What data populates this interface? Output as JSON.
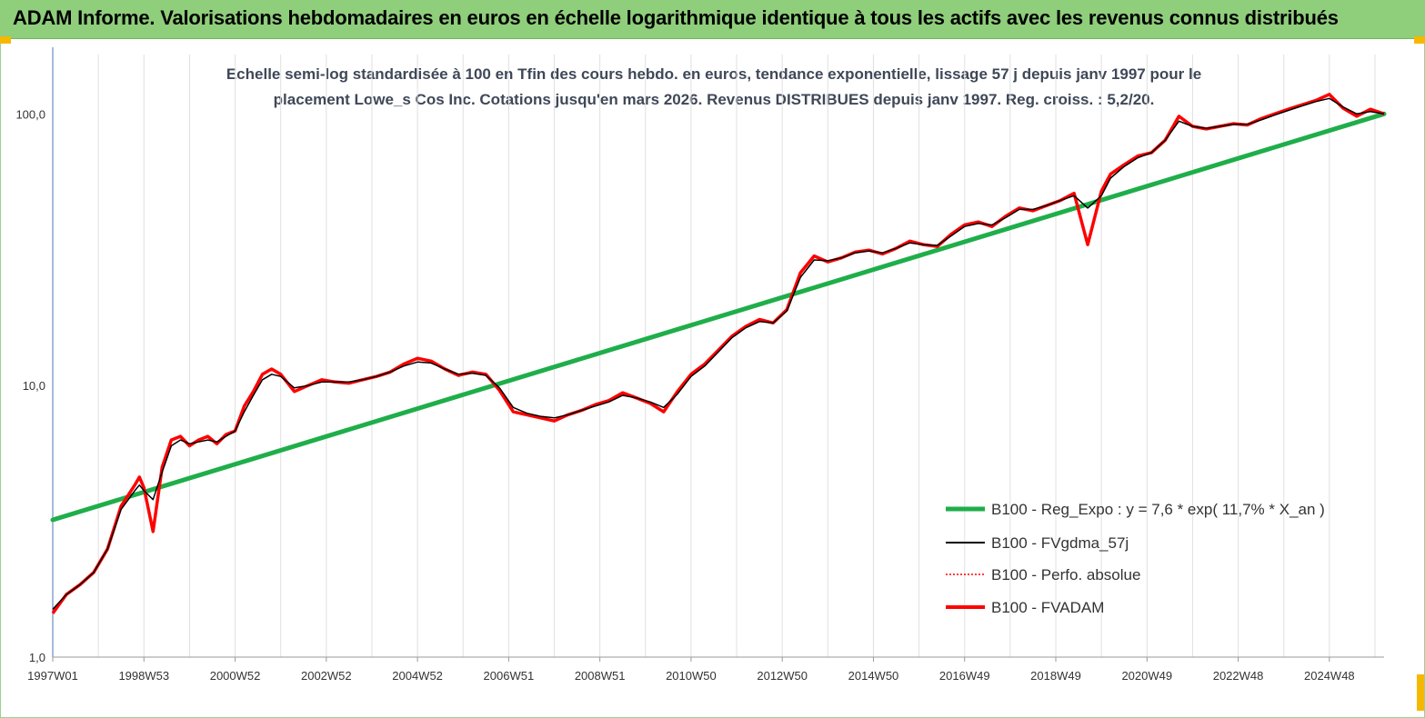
{
  "header": {
    "title": "ADAM Informe. Valorisations hebdomadaires en euros en échelle logarithmique identique à tous les actifs avec les revenus connus distribués"
  },
  "colors": {
    "header_bg": "#8fce7b",
    "regression": "#1fae4a",
    "smoothed": "#000000",
    "perfo": "#ff0000",
    "fvadam": "#ff0000",
    "grid": "#e0e0e0"
  },
  "chart_data": {
    "type": "line",
    "title": "Echelle semi-log standardisée à 100 en Tfin des cours hebdo. en euros, tendance exponentielle, lissage 57 j depuis janv 1997 pour le placement Lowe_s Cos Inc. Cotations jusqu'en mars 2026. Revenus DISTRIBUES depuis janv 1997. Reg. croiss. : 5,2/20.",
    "title_lines": [
      "Echelle semi-log standardisée à 100 en Tfin des cours hebdo. en euros, tendance exponentielle, lissage 57 j depuis janv 1997 pour le",
      "placement Lowe_s Cos Inc. Cotations jusqu'en mars 2026.  Revenus DISTRIBUES depuis janv 1997.  Reg. croiss. : 5,2/20."
    ],
    "y_scale": "log",
    "ylim": [
      1,
      190
    ],
    "y_ticks": [
      1,
      10,
      100
    ],
    "y_tick_labels": [
      "1,0",
      "10,0",
      "100,0"
    ],
    "xlim": [
      1997.0,
      2026.2
    ],
    "x_tick_labels": [
      "1997W01",
      "1998W53",
      "2000W52",
      "2002W52",
      "2004W52",
      "2006W51",
      "2008W51",
      "2010W50",
      "2012W50",
      "2014W50",
      "2016W49",
      "2018W49",
      "2020W49",
      "2022W48",
      "2024W48"
    ],
    "x_tick_positions": [
      1997,
      1999,
      2001,
      2003,
      2005,
      2007,
      2009,
      2011,
      2013,
      2015,
      2017,
      2019,
      2021,
      2023,
      2025
    ],
    "grid": "vertical",
    "legend_position": "right",
    "legend": [
      "B100 - Reg_Expo : y = 7,6 * exp( 11,7% *  X_an )",
      "B100 - FVgdma_57j",
      "B100 - Perfo. absolue",
      "B100 - FVADAM"
    ],
    "series": [
      {
        "name": "B100 - Reg_Expo : y = 7,6 * exp( 11,7% *  X_an )",
        "style": "thick-green",
        "x": [
          1997.0,
          2026.2
        ],
        "y": [
          3.2,
          100
        ]
      },
      {
        "name": "B100 - FVADAM",
        "style": "red",
        "x": [
          1997.0,
          1997.3,
          1997.6,
          1997.9,
          1998.2,
          1998.5,
          1998.8,
          1998.9,
          1999.0,
          1999.2,
          1999.4,
          1999.6,
          1999.8,
          2000.0,
          2000.2,
          2000.4,
          2000.6,
          2000.8,
          2001.0,
          2001.2,
          2001.4,
          2001.6,
          2001.8,
          2002.0,
          2002.3,
          2002.6,
          2002.9,
          2003.2,
          2003.5,
          2003.8,
          2004.1,
          2004.4,
          2004.7,
          2005.0,
          2005.3,
          2005.6,
          2005.9,
          2006.2,
          2006.5,
          2006.8,
          2007.1,
          2007.4,
          2007.7,
          2008.0,
          2008.3,
          2008.6,
          2008.9,
          2009.2,
          2009.5,
          2009.8,
          2010.1,
          2010.4,
          2010.7,
          2011.0,
          2011.3,
          2011.6,
          2011.9,
          2012.2,
          2012.5,
          2012.8,
          2013.1,
          2013.4,
          2013.7,
          2014.0,
          2014.3,
          2014.6,
          2014.9,
          2015.2,
          2015.5,
          2015.8,
          2016.1,
          2016.4,
          2016.7,
          2017.0,
          2017.3,
          2017.6,
          2017.9,
          2018.2,
          2018.5,
          2018.8,
          2019.1,
          2019.4,
          2019.7,
          2020.0,
          2020.2,
          2020.5,
          2020.8,
          2021.1,
          2021.4,
          2021.7,
          2022.0,
          2022.3,
          2022.6,
          2022.9,
          2023.2,
          2023.5,
          2023.8,
          2024.1,
          2024.4,
          2024.7,
          2025.0,
          2025.3,
          2025.6,
          2025.9,
          2026.2
        ],
        "y": [
          1.45,
          1.7,
          1.85,
          2.05,
          2.5,
          3.6,
          4.3,
          4.6,
          4.2,
          2.9,
          5.0,
          6.3,
          6.5,
          6.0,
          6.3,
          6.5,
          6.1,
          6.6,
          6.8,
          8.4,
          9.5,
          11.0,
          11.5,
          11.0,
          9.5,
          10.0,
          10.5,
          10.3,
          10.2,
          10.5,
          10.8,
          11.2,
          12.0,
          12.6,
          12.3,
          11.5,
          10.9,
          11.2,
          11.0,
          9.6,
          8.0,
          7.8,
          7.6,
          7.4,
          7.8,
          8.1,
          8.5,
          8.8,
          9.4,
          9.0,
          8.6,
          8.0,
          9.5,
          11.0,
          12.0,
          13.5,
          15.2,
          16.5,
          17.5,
          17.0,
          19.0,
          26.0,
          30.0,
          28.5,
          29.5,
          31.0,
          31.5,
          30.5,
          32.0,
          34.0,
          33.0,
          32.5,
          36.0,
          39.0,
          40.0,
          38.5,
          42.0,
          45.0,
          44.0,
          46.0,
          48.0,
          51.0,
          33.0,
          52.0,
          60.0,
          65.0,
          70.0,
          72.0,
          80.0,
          98.0,
          90.0,
          88.0,
          90.0,
          92.0,
          91.0,
          96.0,
          100.0,
          104.0,
          108.0,
          112.0,
          118.0,
          105.0,
          98.0,
          104.0,
          100.0
        ]
      },
      {
        "name": "B100 - FVgdma_57j",
        "style": "black",
        "x": [
          1997.0,
          1997.3,
          1997.6,
          1997.9,
          1998.2,
          1998.5,
          1998.8,
          1998.9,
          1999.0,
          1999.2,
          1999.4,
          1999.6,
          1999.8,
          2000.0,
          2000.2,
          2000.4,
          2000.6,
          2000.8,
          2001.0,
          2001.2,
          2001.4,
          2001.6,
          2001.8,
          2002.0,
          2002.3,
          2002.6,
          2002.9,
          2003.2,
          2003.5,
          2003.8,
          2004.1,
          2004.4,
          2004.7,
          2005.0,
          2005.3,
          2005.6,
          2005.9,
          2006.2,
          2006.5,
          2006.8,
          2007.1,
          2007.4,
          2007.7,
          2008.0,
          2008.3,
          2008.6,
          2008.9,
          2009.2,
          2009.5,
          2009.8,
          2010.1,
          2010.4,
          2010.7,
          2011.0,
          2011.3,
          2011.6,
          2011.9,
          2012.2,
          2012.5,
          2012.8,
          2013.1,
          2013.4,
          2013.7,
          2014.0,
          2014.3,
          2014.6,
          2014.9,
          2015.2,
          2015.5,
          2015.8,
          2016.1,
          2016.4,
          2016.7,
          2017.0,
          2017.3,
          2017.6,
          2017.9,
          2018.2,
          2018.5,
          2018.8,
          2019.1,
          2019.4,
          2019.7,
          2020.0,
          2020.2,
          2020.5,
          2020.8,
          2021.1,
          2021.4,
          2021.7,
          2022.0,
          2022.3,
          2022.6,
          2022.9,
          2023.2,
          2023.5,
          2023.8,
          2024.1,
          2024.4,
          2024.7,
          2025.0,
          2025.3,
          2025.6,
          2025.9,
          2026.2
        ],
        "y": [
          1.5,
          1.7,
          1.85,
          2.05,
          2.5,
          3.5,
          4.1,
          4.3,
          4.1,
          3.8,
          4.8,
          6.0,
          6.3,
          6.1,
          6.2,
          6.3,
          6.2,
          6.5,
          6.8,
          8.0,
          9.2,
          10.5,
          11.0,
          10.8,
          9.8,
          10.0,
          10.3,
          10.3,
          10.3,
          10.5,
          10.8,
          11.2,
          11.8,
          12.2,
          12.1,
          11.5,
          11.0,
          11.1,
          10.9,
          9.8,
          8.3,
          7.9,
          7.7,
          7.6,
          7.8,
          8.1,
          8.4,
          8.7,
          9.2,
          9.0,
          8.7,
          8.3,
          9.3,
          10.8,
          11.8,
          13.3,
          15.0,
          16.3,
          17.2,
          17.0,
          18.8,
          25.0,
          29.0,
          28.8,
          29.5,
          30.8,
          31.3,
          30.8,
          32.0,
          33.5,
          33.0,
          32.8,
          35.5,
          38.5,
          39.5,
          39.0,
          41.5,
          44.5,
          44.5,
          46.0,
          48.0,
          50.0,
          45.0,
          50.0,
          58.0,
          64.0,
          69.0,
          72.0,
          80.0,
          94.0,
          90.0,
          88.5,
          90.0,
          91.5,
          91.5,
          95.0,
          99.0,
          103.0,
          107.0,
          111.0,
          114.0,
          106.0,
          100.0,
          102.0,
          100.0
        ]
      }
    ]
  }
}
